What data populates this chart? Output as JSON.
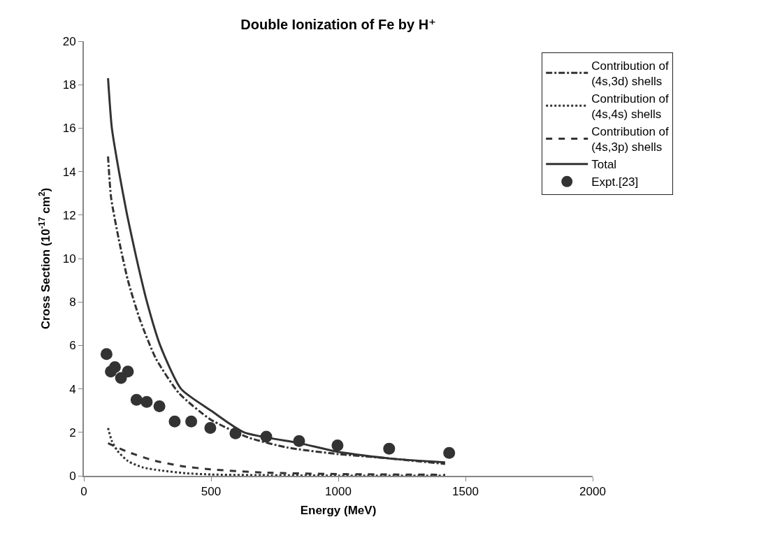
{
  "chart_data": {
    "type": "line",
    "title": "Double Ionization of Fe by H⁺",
    "xlabel": "Energy (MeV)",
    "ylabel": "Cross Section (10$^{-17}$ cm$^{2}$)",
    "xlim": [
      0,
      2000
    ],
    "xticks": [
      0,
      500,
      1000,
      1500,
      2000
    ],
    "ylim": [
      0,
      20
    ],
    "yticks": [
      0,
      2,
      4,
      6,
      8,
      10,
      12,
      14,
      16,
      18,
      20
    ],
    "grid": false,
    "legend": "top right",
    "series": [
      {
        "name": "Contribution of (4s,3d) shells",
        "color": "#333333",
        "line_style": "dashdot",
        "x": [
          95,
          107,
          137,
          173,
          220,
          283,
          374,
          497,
          645,
          800,
          1000,
          1200,
          1420
        ],
        "values": [
          14.7,
          12.8,
          10.9,
          9.0,
          7.2,
          5.4,
          3.8,
          2.6,
          1.77,
          1.3,
          1.0,
          0.8,
          0.55
        ]
      },
      {
        "name": "Contribution of (4s,4s) shells",
        "color": "#333333",
        "line_style": "dotted",
        "x": [
          95,
          110,
          132,
          173,
          231,
          300,
          400,
          500,
          700,
          1000,
          1420
        ],
        "values": [
          2.2,
          1.6,
          1.15,
          0.68,
          0.39,
          0.25,
          0.12,
          0.06,
          0.03,
          0.01,
          0.01
        ]
      },
      {
        "name": "Contribution of (4s,3p) shells",
        "color": "#333333",
        "line_style": "dashed",
        "x": [
          95,
          173,
          270,
          382,
          497,
          700,
          1000,
          1420
        ],
        "values": [
          1.5,
          1.1,
          0.72,
          0.45,
          0.3,
          0.15,
          0.08,
          0.05
        ]
      },
      {
        "name": "Total",
        "color": "#333333",
        "line_style": "solid",
        "x": [
          95,
          110,
          138,
          170,
          207,
          248,
          300,
          382,
          500,
          630,
          850,
          1000,
          1200,
          1420
        ],
        "values": [
          18.3,
          16,
          14,
          12,
          10,
          8,
          6,
          4,
          3.0,
          2.0,
          1.5,
          1.1,
          0.8,
          0.62
        ]
      },
      {
        "name": "Expt.[23]",
        "type": "scatter",
        "marker": "circle",
        "color": "#333333",
        "x": [
          89,
          106,
          122,
          146,
          173,
          207,
          247,
          297,
          357,
          422,
          497,
          596,
          717,
          846,
          997,
          1200,
          1436
        ],
        "values": [
          5.6,
          4.8,
          5.0,
          4.5,
          4.8,
          3.5,
          3.4,
          3.2,
          2.5,
          2.5,
          2.2,
          1.95,
          1.8,
          1.6,
          1.4,
          1.25,
          1.05
        ]
      }
    ]
  }
}
